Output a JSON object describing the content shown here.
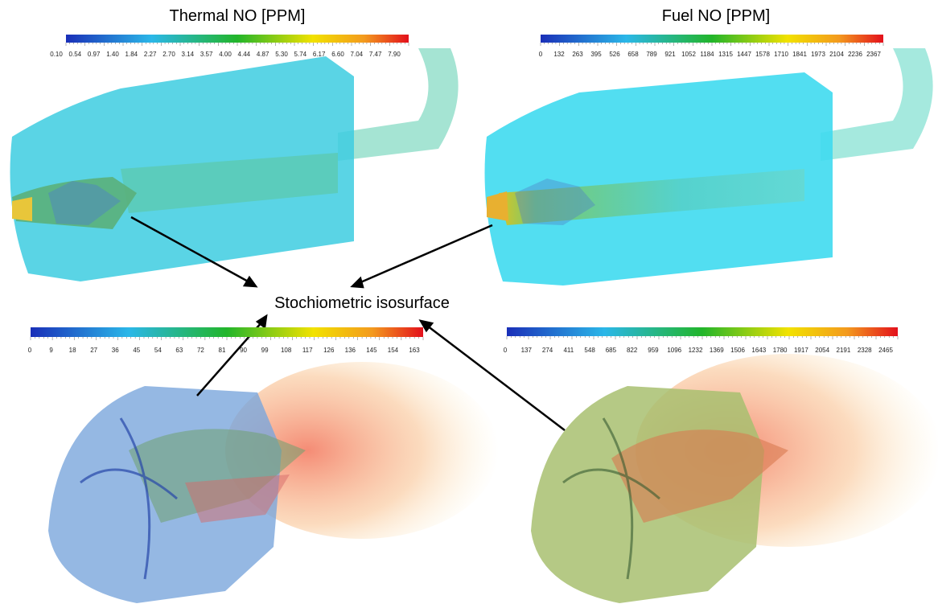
{
  "panels": [
    {
      "title": "Thermal NO [PPM]",
      "ticks": [
        "0.10",
        "0.54",
        "0.97",
        "1.40",
        "1.84",
        "2.27",
        "2.70",
        "3.14",
        "3.57",
        "4.00",
        "4.44",
        "4.87",
        "5.30",
        "5.74",
        "6.17",
        "6.60",
        "7.04",
        "7.47",
        "7.90"
      ]
    },
    {
      "title": "Fuel NO [PPM]",
      "ticks": [
        "0",
        "132",
        "263",
        "395",
        "526",
        "658",
        "789",
        "921",
        "1052",
        "1184",
        "1315",
        "1447",
        "1578",
        "1710",
        "1841",
        "1973",
        "2104",
        "2236",
        "2367"
      ]
    },
    {
      "ticks": [
        "0",
        "9",
        "18",
        "27",
        "36",
        "45",
        "54",
        "63",
        "72",
        "81",
        "90",
        "99",
        "108",
        "117",
        "126",
        "136",
        "145",
        "154",
        "163"
      ]
    },
    {
      "ticks": [
        "0",
        "137",
        "274",
        "411",
        "548",
        "685",
        "822",
        "959",
        "1096",
        "1232",
        "1369",
        "1506",
        "1643",
        "1780",
        "1917",
        "2054",
        "2191",
        "2328",
        "2465"
      ]
    }
  ],
  "center_label": "Stochiometric isosurface"
}
